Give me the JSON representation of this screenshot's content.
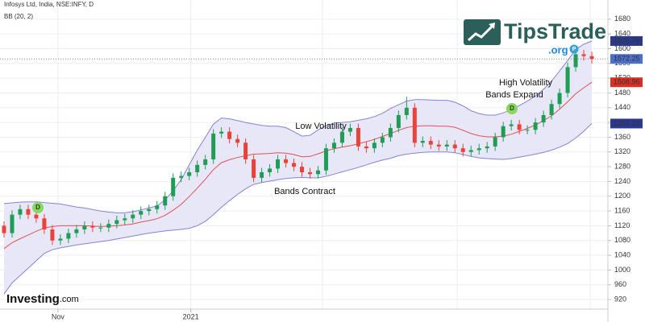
{
  "chart_data": {
    "type": "candlestick",
    "title": "Infosys Ltd, India, NSE:INFY, D",
    "indicator": "BB (20, 2)",
    "open": [
      1120,
      1100,
      1150,
      1165,
      1150,
      1140,
      1110,
      1080,
      1085,
      1100,
      1110,
      1120,
      1115,
      1115,
      1125,
      1135,
      1140,
      1150,
      1160,
      1165,
      1175,
      1200,
      1250,
      1255,
      1265,
      1285,
      1300,
      1370,
      1375,
      1355,
      1345,
      1300,
      1250,
      1265,
      1275,
      1300,
      1290,
      1280,
      1265,
      1260,
      1270,
      1330,
      1345,
      1375,
      1385,
      1335,
      1330,
      1345,
      1360,
      1385,
      1420,
      1440,
      1345,
      1350,
      1340,
      1335,
      1340,
      1330,
      1320,
      1325,
      1330,
      1335,
      1360,
      1390,
      1395,
      1380,
      1380,
      1400,
      1420,
      1450,
      1480,
      1550,
      1585,
      1580
    ],
    "high": [
      1132,
      1162,
      1177,
      1177,
      1162,
      1152,
      1122,
      1097,
      1112,
      1122,
      1132,
      1132,
      1127,
      1137,
      1147,
      1152,
      1162,
      1172,
      1177,
      1187,
      1212,
      1262,
      1267,
      1277,
      1297,
      1312,
      1382,
      1387,
      1387,
      1367,
      1357,
      1312,
      1277,
      1287,
      1312,
      1312,
      1302,
      1292,
      1277,
      1282,
      1342,
      1357,
      1387,
      1397,
      1397,
      1347,
      1357,
      1372,
      1397,
      1432,
      1470,
      1452,
      1362,
      1362,
      1352,
      1352,
      1352,
      1342,
      1337,
      1342,
      1347,
      1372,
      1402,
      1407,
      1407,
      1392,
      1412,
      1432,
      1462,
      1492,
      1562,
      1597,
      1597,
      1592
    ],
    "low": [
      1088,
      1088,
      1138,
      1138,
      1128,
      1098,
      1068,
      1068,
      1073,
      1088,
      1098,
      1103,
      1103,
      1103,
      1113,
      1123,
      1128,
      1138,
      1148,
      1153,
      1163,
      1188,
      1238,
      1243,
      1253,
      1273,
      1288,
      1358,
      1343,
      1333,
      1288,
      1238,
      1238,
      1253,
      1263,
      1278,
      1268,
      1253,
      1248,
      1248,
      1258,
      1318,
      1333,
      1363,
      1323,
      1318,
      1318,
      1333,
      1348,
      1373,
      1408,
      1333,
      1333,
      1328,
      1323,
      1323,
      1318,
      1308,
      1308,
      1313,
      1318,
      1323,
      1348,
      1378,
      1368,
      1368,
      1368,
      1388,
      1408,
      1438,
      1468,
      1538,
      1568,
      1560
    ],
    "close": [
      1100,
      1150,
      1165,
      1150,
      1140,
      1110,
      1080,
      1085,
      1100,
      1110,
      1120,
      1115,
      1115,
      1125,
      1135,
      1140,
      1150,
      1160,
      1165,
      1175,
      1200,
      1250,
      1255,
      1265,
      1285,
      1300,
      1370,
      1375,
      1355,
      1345,
      1300,
      1250,
      1265,
      1275,
      1300,
      1290,
      1280,
      1265,
      1260,
      1270,
      1330,
      1345,
      1375,
      1385,
      1335,
      1330,
      1345,
      1360,
      1385,
      1420,
      1440,
      1345,
      1350,
      1340,
      1335,
      1340,
      1330,
      1320,
      1325,
      1330,
      1335,
      1360,
      1390,
      1395,
      1380,
      1380,
      1400,
      1420,
      1450,
      1480,
      1550,
      1585,
      1580,
      1572.25
    ],
    "bands": {
      "upper": [
        1180,
        1182,
        1184,
        1185,
        1185,
        1183,
        1181,
        1179,
        1175,
        1171,
        1168,
        1164,
        1160,
        1157,
        1155,
        1155,
        1158,
        1163,
        1168,
        1174,
        1190,
        1215,
        1245,
        1285,
        1325,
        1360,
        1395,
        1412,
        1410,
        1405,
        1400,
        1396,
        1392,
        1390,
        1390,
        1386,
        1375,
        1363,
        1365,
        1380,
        1392,
        1398,
        1400,
        1402,
        1406,
        1410,
        1416,
        1425,
        1438,
        1448,
        1458,
        1462,
        1462,
        1461,
        1460,
        1460,
        1455,
        1445,
        1432,
        1424,
        1420,
        1420,
        1426,
        1435,
        1446,
        1458,
        1472,
        1490,
        1512,
        1540,
        1568,
        1598,
        1612,
        1620.79
      ],
      "middle": [
        1058,
        1074,
        1085,
        1095,
        1105,
        1114,
        1118,
        1120,
        1120,
        1120,
        1120,
        1119,
        1118,
        1119,
        1120,
        1122,
        1125,
        1130,
        1134,
        1139,
        1148,
        1162,
        1178,
        1199,
        1222,
        1246,
        1272,
        1291,
        1299,
        1305,
        1310,
        1314,
        1315,
        1316,
        1318,
        1317,
        1313,
        1307,
        1308,
        1315,
        1323,
        1329,
        1333,
        1337,
        1342,
        1348,
        1354,
        1362,
        1370,
        1379,
        1386,
        1390,
        1391,
        1391,
        1390,
        1390,
        1387,
        1379,
        1370,
        1364,
        1361,
        1361,
        1363,
        1368,
        1376,
        1384,
        1393,
        1405,
        1418,
        1436,
        1456,
        1478,
        1494,
        1508.96
      ],
      "lower": [
        935,
        965,
        985,
        1005,
        1025,
        1045,
        1055,
        1060,
        1064,
        1068,
        1071,
        1074,
        1077,
        1080,
        1084,
        1088,
        1092,
        1096,
        1100,
        1103,
        1106,
        1108,
        1110,
        1113,
        1120,
        1132,
        1150,
        1170,
        1188,
        1205,
        1220,
        1232,
        1237,
        1241,
        1245,
        1248,
        1250,
        1251,
        1250,
        1250,
        1254,
        1260,
        1266,
        1272,
        1278,
        1285,
        1292,
        1298,
        1303,
        1310,
        1314,
        1317,
        1319,
        1320,
        1320,
        1320,
        1318,
        1313,
        1308,
        1304,
        1302,
        1301,
        1300,
        1302,
        1306,
        1310,
        1314,
        1319,
        1325,
        1333,
        1343,
        1358,
        1376,
        1397.13
      ]
    },
    "ylim": [
      894,
      1732
    ],
    "yticks": [
      920,
      960,
      1000,
      1040,
      1080,
      1120,
      1160,
      1200,
      1240,
      1280,
      1320,
      1360,
      1400,
      1440,
      1480,
      1520,
      1560,
      1600,
      1640,
      1680
    ],
    "xlim": [
      -0.5,
      75
    ],
    "xticks": [
      {
        "value": 6.7,
        "label": "Nov"
      },
      {
        "value": 23.2,
        "label": "2021"
      }
    ],
    "grid": true,
    "up_color": "#1f9d55",
    "down_color": "#e8433a",
    "band_color": "#8185d6",
    "band_fill": "#e7e7f7",
    "middle_color": "#e05252",
    "last_label_colors": {
      "upper": "#2b3a8f",
      "close": "#4c6fc9",
      "middle": "#d93025",
      "lower": "#2b3a8f"
    },
    "annotations": [
      "Low Volatility",
      "Bands Contract",
      "High Volatility",
      "Bands Expand"
    ],
    "markers": [
      "D",
      "D",
      "P"
    ]
  },
  "logo": {
    "name": "TipsTrade",
    "suffix": ".org"
  },
  "watermark": {
    "name": "Investing",
    "suffix": ".com"
  }
}
